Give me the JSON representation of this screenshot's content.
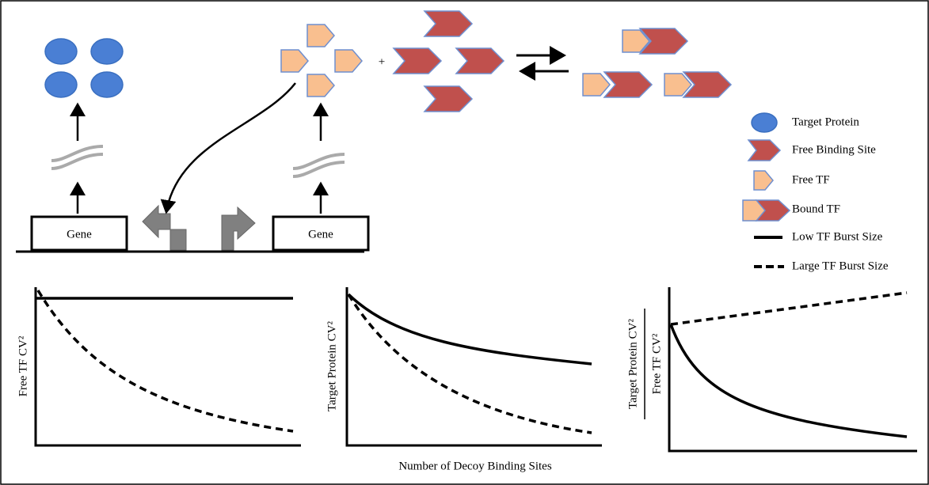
{
  "diagram": {
    "genes": [
      "Gene",
      "Gene"
    ],
    "plus": "+",
    "legend": [
      "Target Protein",
      "Free Binding Site",
      "Free TF",
      "Bound TF",
      "Low TF Burst Size",
      "Large TF Burst Size"
    ],
    "plots": [
      {
        "y_label": "Free TF CV²"
      },
      {
        "y_label": "Target Protein CV²",
        "x_label": "Number of Decoy Binding Sites"
      },
      {
        "y_label_numerator": "Target Protein CV²",
        "y_label_denominator": "Free TF CV²"
      }
    ]
  }
}
